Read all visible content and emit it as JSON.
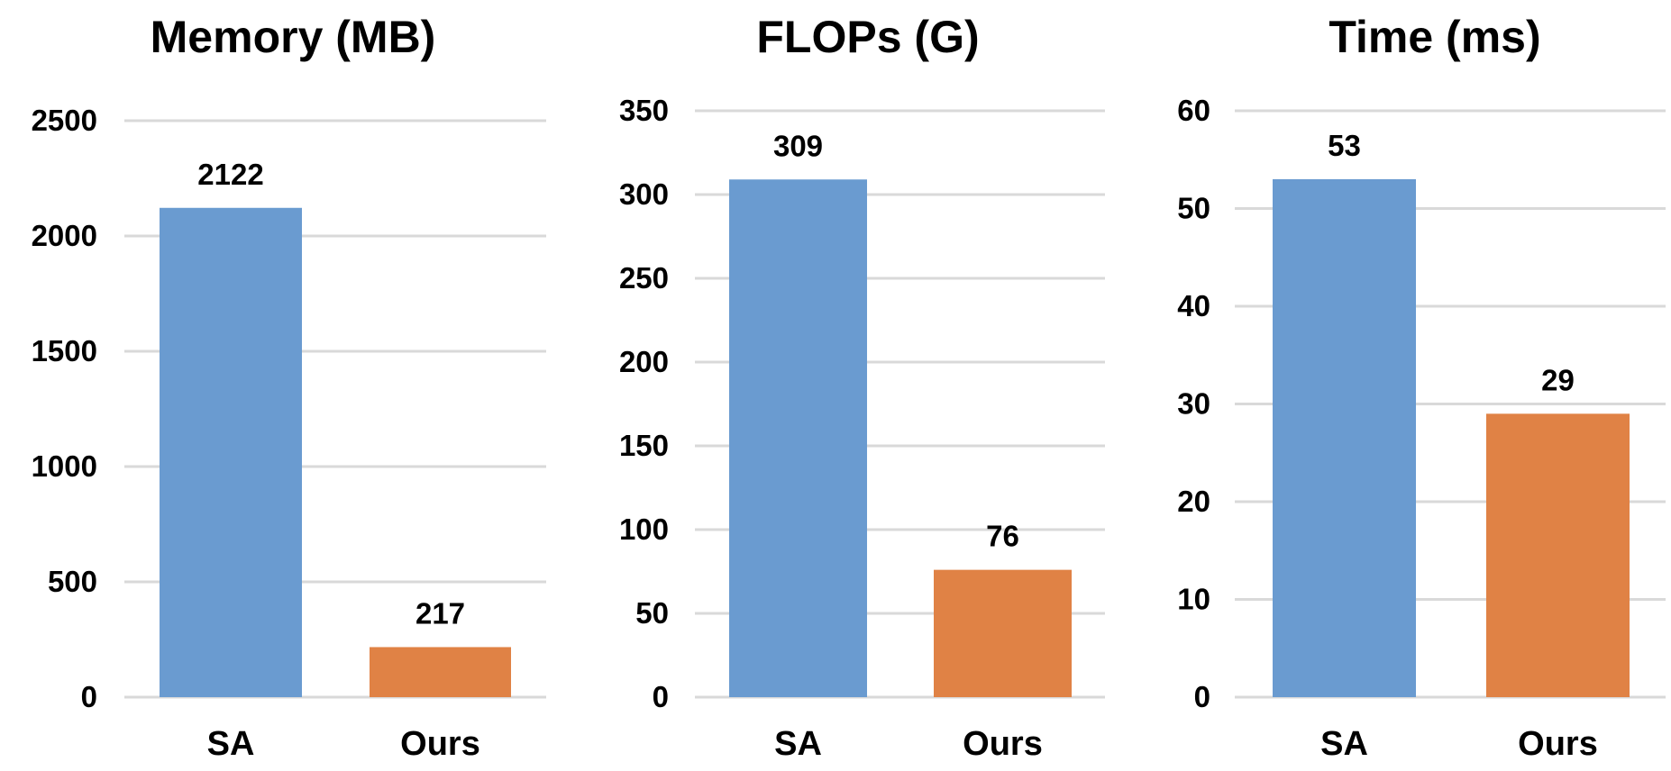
{
  "chart_data": [
    {
      "type": "bar",
      "title": "Memory (MB)",
      "categories": [
        "SA",
        "Ours"
      ],
      "values": [
        2122,
        217
      ],
      "data_labels": [
        "2122",
        "217"
      ],
      "ylim": [
        0,
        2500
      ],
      "yticks": [
        0,
        500,
        1000,
        1500,
        2000,
        2500
      ],
      "grid": true,
      "xlabel": "",
      "ylabel": ""
    },
    {
      "type": "bar",
      "title": "FLOPs (G)",
      "categories": [
        "SA",
        "Ours"
      ],
      "values": [
        309,
        76
      ],
      "data_labels": [
        "309",
        "76"
      ],
      "ylim": [
        0,
        350
      ],
      "yticks": [
        0,
        50,
        100,
        150,
        200,
        250,
        300,
        350
      ],
      "grid": true,
      "xlabel": "",
      "ylabel": ""
    },
    {
      "type": "bar",
      "title": "Time (ms)",
      "categories": [
        "SA",
        "Ours"
      ],
      "values": [
        53,
        29
      ],
      "data_labels": [
        "53",
        "29"
      ],
      "ylim": [
        0,
        60
      ],
      "yticks": [
        0,
        10,
        20,
        30,
        40,
        50,
        60
      ],
      "grid": true,
      "xlabel": "",
      "ylabel": ""
    }
  ],
  "colors": {
    "SA": "#6a9bd0",
    "Ours": "#e08245",
    "grid": "#d9d9d9"
  }
}
